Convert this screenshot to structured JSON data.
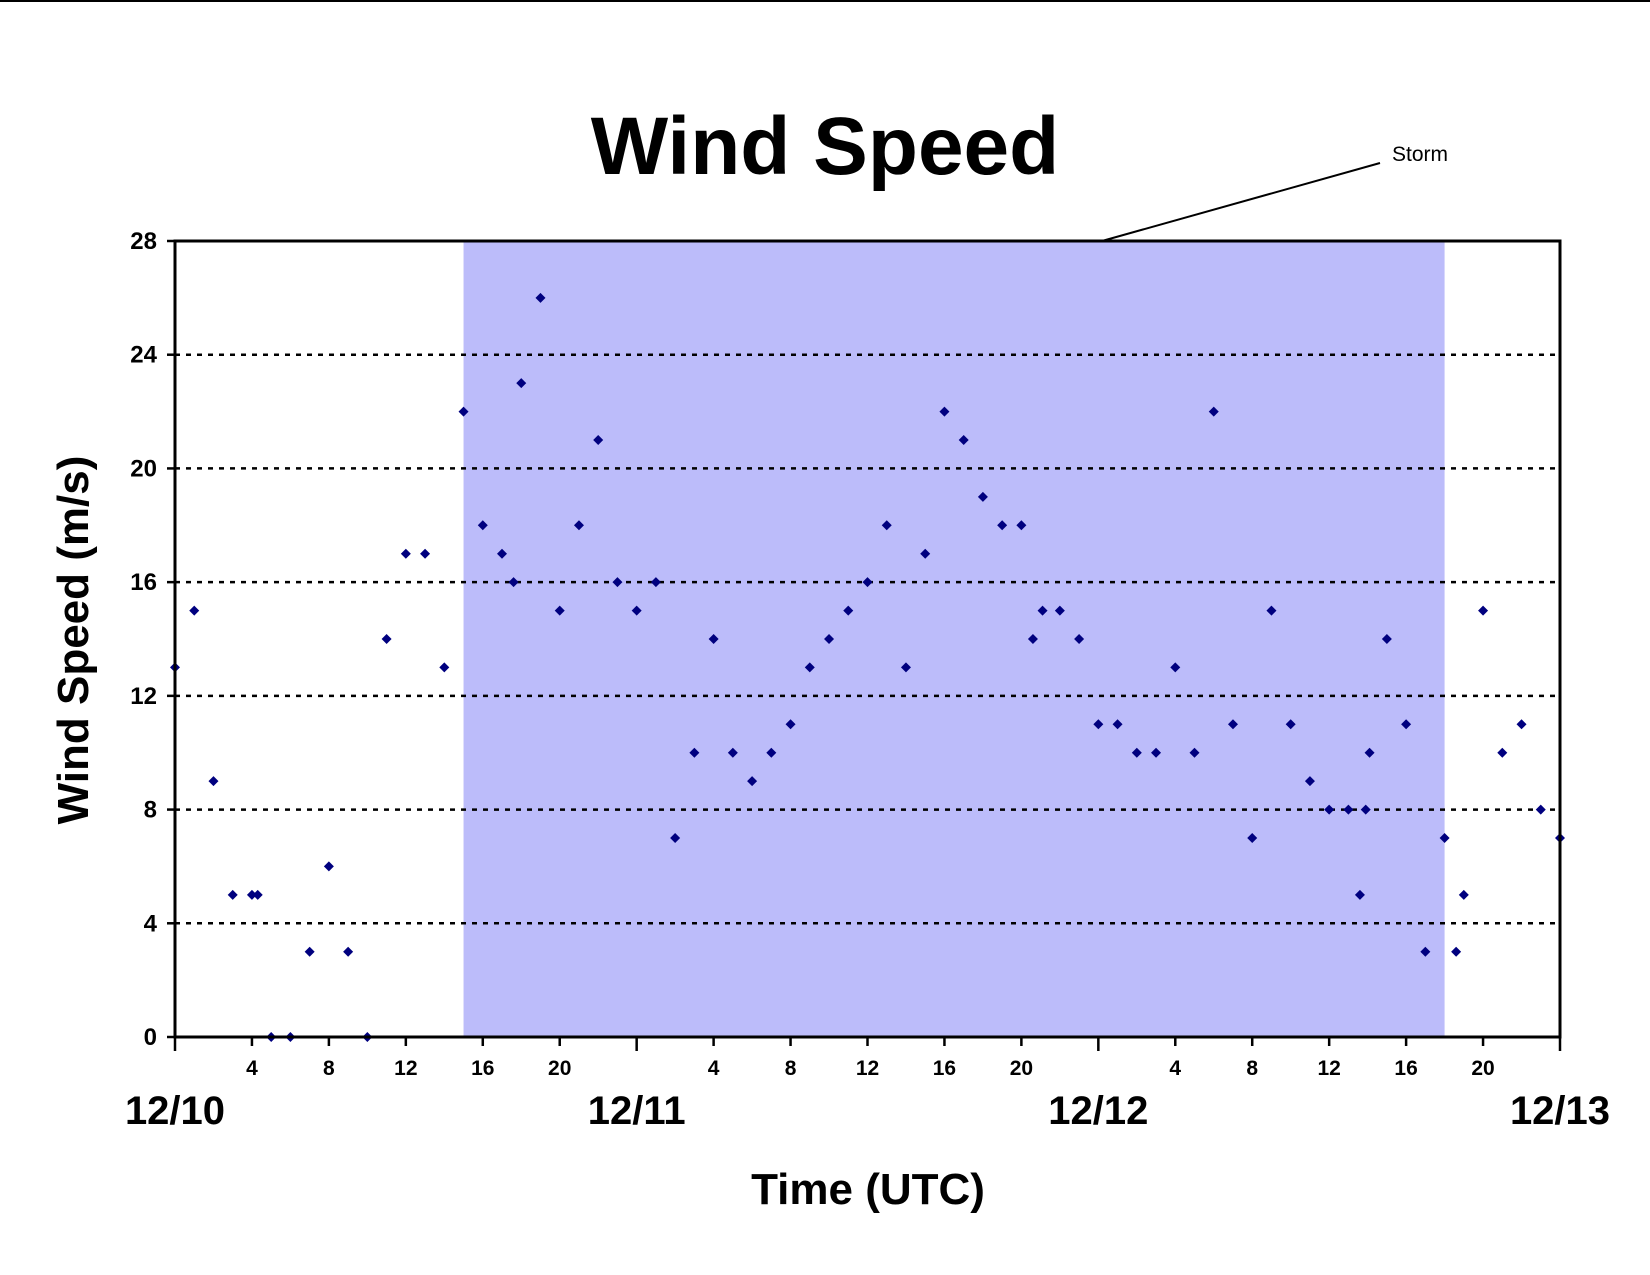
{
  "chart_data": {
    "type": "scatter",
    "title": "Wind Speed",
    "xlabel": "Time (UTC)",
    "ylabel": "Wind Speed (m/s)",
    "x_unit": "hours since 12/10 00 UTC",
    "xlim": [
      0,
      72
    ],
    "ylim": [
      0,
      28
    ],
    "y_ticks": [
      0,
      4,
      8,
      12,
      16,
      20,
      24,
      28
    ],
    "grid": "horizontal dashed",
    "x_tick_labels": [
      "4",
      "8",
      "12",
      "16",
      "20",
      "4",
      "8",
      "12",
      "16",
      "20",
      "4",
      "8",
      "12",
      "16",
      "20"
    ],
    "date_labels": [
      "12/10",
      "12/11",
      "12/12",
      "12/13"
    ],
    "storm": {
      "label": "Storm",
      "start": 15,
      "end": 66,
      "color": "#bcbcfa"
    },
    "marker_color": "#00007f",
    "points": [
      [
        0,
        13
      ],
      [
        1,
        15
      ],
      [
        2,
        9
      ],
      [
        3,
        5
      ],
      [
        4,
        5
      ],
      [
        4.3,
        5
      ],
      [
        5,
        0
      ],
      [
        6,
        0
      ],
      [
        7,
        3
      ],
      [
        8,
        6
      ],
      [
        9,
        3
      ],
      [
        10,
        0
      ],
      [
        11,
        14
      ],
      [
        12,
        17
      ],
      [
        13,
        17
      ],
      [
        14,
        13
      ],
      [
        15,
        22
      ],
      [
        16,
        18
      ],
      [
        17,
        17
      ],
      [
        17.6,
        16
      ],
      [
        18,
        23
      ],
      [
        19,
        26
      ],
      [
        20,
        15
      ],
      [
        21,
        18
      ],
      [
        22,
        21
      ],
      [
        23,
        16
      ],
      [
        24,
        15
      ],
      [
        25,
        16
      ],
      [
        26,
        7
      ],
      [
        27,
        10
      ],
      [
        28,
        14
      ],
      [
        29,
        10
      ],
      [
        30,
        9
      ],
      [
        31,
        10
      ],
      [
        32,
        11
      ],
      [
        33,
        13
      ],
      [
        34,
        14
      ],
      [
        35,
        15
      ],
      [
        36,
        16
      ],
      [
        37,
        18
      ],
      [
        38,
        13
      ],
      [
        39,
        17
      ],
      [
        40,
        22
      ],
      [
        41,
        21
      ],
      [
        42,
        19
      ],
      [
        43,
        18
      ],
      [
        44,
        18
      ],
      [
        44.6,
        14
      ],
      [
        45.1,
        15
      ],
      [
        46,
        15
      ],
      [
        47,
        14
      ],
      [
        48,
        11
      ],
      [
        49,
        11
      ],
      [
        50,
        10
      ],
      [
        51,
        10
      ],
      [
        52,
        13
      ],
      [
        53,
        10
      ],
      [
        54,
        22
      ],
      [
        55,
        11
      ],
      [
        56,
        7
      ],
      [
        57,
        15
      ],
      [
        58,
        11
      ],
      [
        59,
        9
      ],
      [
        60,
        8
      ],
      [
        61,
        8
      ],
      [
        61.6,
        5
      ],
      [
        61.9,
        8
      ],
      [
        62.1,
        10
      ],
      [
        63,
        14
      ],
      [
        64,
        11
      ],
      [
        65,
        3
      ],
      [
        66,
        7
      ],
      [
        66.6,
        3
      ],
      [
        67,
        5
      ],
      [
        68,
        15
      ],
      [
        69,
        10
      ],
      [
        70,
        11
      ],
      [
        71,
        8
      ],
      [
        72,
        7
      ]
    ]
  }
}
